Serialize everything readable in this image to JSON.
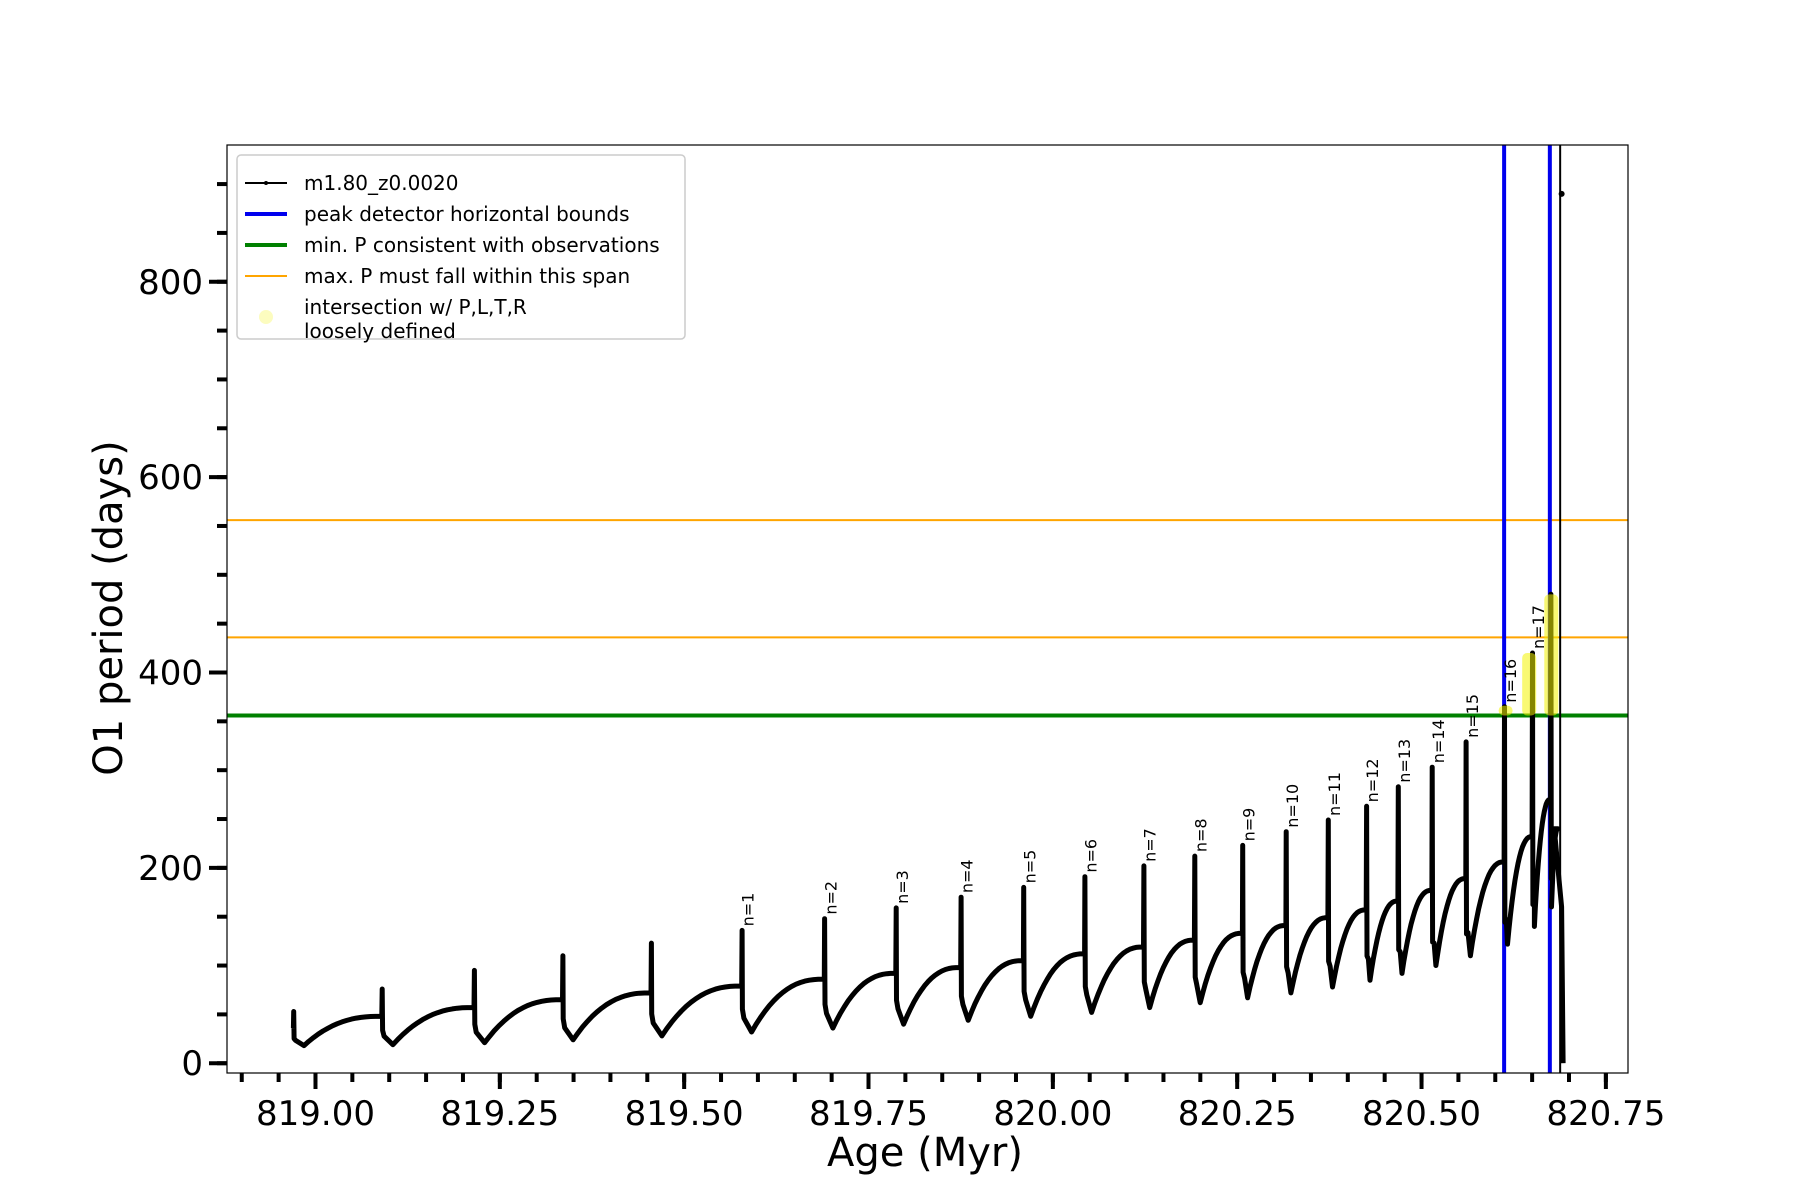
{
  "chart_data": {
    "type": "line",
    "xlabel": "Age (Myr)",
    "ylabel": "O1 period (days)",
    "xlim": [
      818.88,
      820.78
    ],
    "ylim": [
      -10,
      940
    ],
    "x_ticks": [
      819.0,
      819.25,
      819.5,
      819.75,
      820.0,
      820.25,
      820.5,
      820.75
    ],
    "x_tick_labels": [
      "819.00",
      "819.25",
      "819.50",
      "819.75",
      "820.00",
      "820.25",
      "820.50",
      "820.75"
    ],
    "x_minor_step": 0.05,
    "y_ticks": [
      0,
      200,
      400,
      600,
      800
    ],
    "y_tick_labels": [
      "0",
      "200",
      "400",
      "600",
      "800"
    ],
    "y_minor_step": 50,
    "grid": false,
    "legend_position": "top-left",
    "colors": {
      "series": "#000000",
      "peak_bounds": "#0000ee",
      "min_period": "#008000",
      "max_period": "#ffa500",
      "intersection": "#f4f400"
    },
    "legend": [
      {
        "key": "series",
        "label": "m1.80_z0.0020"
      },
      {
        "key": "peak_bounds",
        "label": "peak detector horizontal bounds"
      },
      {
        "key": "min_period",
        "label": "min. P consistent with observations"
      },
      {
        "key": "max_period",
        "label": "max. P must fall within this span"
      },
      {
        "key": "intersection",
        "label": "intersection w/ P,L,T,R",
        "label2": "loosely defined"
      }
    ],
    "peak_bounds_x": [
      820.612,
      820.674
    ],
    "min_period_y": 356,
    "max_period_span": [
      436,
      556
    ],
    "pulses": [
      {
        "x": 818.97,
        "base": 36,
        "peak": 53,
        "dip": 18,
        "end": 48,
        "label": ""
      },
      {
        "x": 819.09,
        "base": 48,
        "peak": 76,
        "dip": 19,
        "end": 57,
        "label": ""
      },
      {
        "x": 819.215,
        "base": 57,
        "peak": 95,
        "dip": 21,
        "end": 65,
        "label": ""
      },
      {
        "x": 819.335,
        "base": 65,
        "peak": 110,
        "dip": 24,
        "end": 72,
        "label": ""
      },
      {
        "x": 819.455,
        "base": 72,
        "peak": 123,
        "dip": 28,
        "end": 79,
        "label": ""
      },
      {
        "x": 819.578,
        "base": 79,
        "peak": 136,
        "dip": 32,
        "end": 86,
        "label": "n=1"
      },
      {
        "x": 819.69,
        "base": 86,
        "peak": 148,
        "dip": 36,
        "end": 92,
        "label": "n=2"
      },
      {
        "x": 819.787,
        "base": 92,
        "peak": 159,
        "dip": 40,
        "end": 98,
        "label": "n=3"
      },
      {
        "x": 819.875,
        "base": 98,
        "peak": 170,
        "dip": 44,
        "end": 105,
        "label": "n=4"
      },
      {
        "x": 819.96,
        "base": 105,
        "peak": 180,
        "dip": 48,
        "end": 112,
        "label": "n=5"
      },
      {
        "x": 820.043,
        "base": 112,
        "peak": 191,
        "dip": 52,
        "end": 119,
        "label": "n=6"
      },
      {
        "x": 820.123,
        "base": 119,
        "peak": 202,
        "dip": 57,
        "end": 126,
        "label": "n=7"
      },
      {
        "x": 820.192,
        "base": 126,
        "peak": 212,
        "dip": 62,
        "end": 133,
        "label": "n=8"
      },
      {
        "x": 820.257,
        "base": 133,
        "peak": 223,
        "dip": 67,
        "end": 141,
        "label": "n=9"
      },
      {
        "x": 820.316,
        "base": 141,
        "peak": 237,
        "dip": 72,
        "end": 149,
        "label": "n=10"
      },
      {
        "x": 820.373,
        "base": 149,
        "peak": 249,
        "dip": 78,
        "end": 157,
        "label": "n=11"
      },
      {
        "x": 820.425,
        "base": 157,
        "peak": 263,
        "dip": 85,
        "end": 166,
        "label": "n=12"
      },
      {
        "x": 820.468,
        "base": 166,
        "peak": 283,
        "dip": 92,
        "end": 177,
        "label": "n=13"
      },
      {
        "x": 820.514,
        "base": 177,
        "peak": 303,
        "dip": 100,
        "end": 189,
        "label": "n=14"
      },
      {
        "x": 820.56,
        "base": 189,
        "peak": 329,
        "dip": 110,
        "end": 206,
        "label": "n=15"
      },
      {
        "x": 820.612,
        "base": 206,
        "peak": 365,
        "dip": 122,
        "end": 232,
        "label": "n=16"
      },
      {
        "x": 820.65,
        "base": 232,
        "peak": 420,
        "dip": 140,
        "end": 270,
        "label": "n=17"
      },
      {
        "x": 820.675,
        "base": 270,
        "peak": 480,
        "dip": 160,
        "end": 240,
        "label": ""
      }
    ],
    "tail": {
      "x": [
        820.68,
        820.685,
        820.69,
        820.692
      ],
      "y": [
        240,
        200,
        160,
        0
      ]
    },
    "final_point": {
      "x": 820.69,
      "y": 890
    },
    "final_vline_x": 820.688,
    "intersections": [
      {
        "x": 820.614,
        "y_low": 356,
        "y_high": 366
      },
      {
        "x": 820.646,
        "y_low": 356,
        "y_high": 420
      },
      {
        "x": 820.676,
        "y_low": 356,
        "y_high": 480
      }
    ]
  }
}
